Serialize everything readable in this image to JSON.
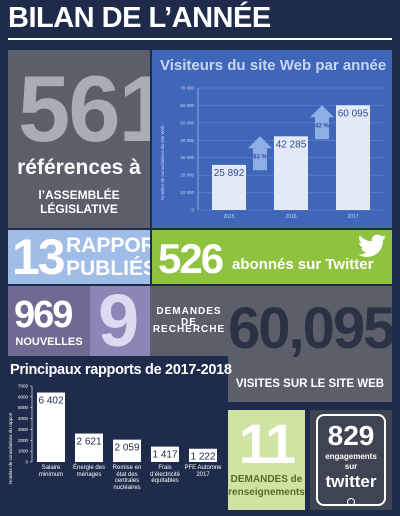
{
  "header": {
    "title": "BILAN DE L’ANNÉE"
  },
  "tiles": {
    "references": {
      "number": "561",
      "line1": "références à",
      "line2": "l’ASSEMBLÉE LÉGISLATIVE"
    },
    "reports": {
      "number": "13",
      "line1": "RAPPORTS",
      "line2": "PUBLIÉS"
    },
    "twitter": {
      "number": "526",
      "text": "abonnés sur Twitter"
    },
    "news": {
      "number": "969",
      "text": "NOUVELLES"
    },
    "research": {
      "number": "9",
      "line1": "DEMANDES DE",
      "line2": "RECHERCHE"
    },
    "visits": {
      "number": "60,095",
      "text": "VISITES SUR LE SITE WEB"
    },
    "inquiries": {
      "number": "11",
      "line1": "DEMANDES de",
      "line2": "renseignements"
    },
    "engagements": {
      "number": "829",
      "line1": "engagements",
      "line2": "sur",
      "line3": "twitter"
    }
  },
  "chart_data": [
    {
      "type": "bar",
      "title": "Visiteurs du site Web par année",
      "y_label": "Nombre de consultations du site Web",
      "categories": [
        "2015",
        "2016",
        "2017"
      ],
      "values": [
        25892,
        42285,
        60095
      ],
      "value_labels": [
        "25 892",
        "42 285",
        "60 095"
      ],
      "ylim": [
        0,
        70000
      ],
      "yticks": [
        0,
        {
          "value": 10000,
          "label": "10 000"
        },
        {
          "value": 20000,
          "label": "20 000"
        },
        {
          "value": 30000,
          "label": "30 000"
        },
        {
          "value": 40000,
          "label": "40 000"
        },
        {
          "value": 50000,
          "label": "50 000"
        },
        {
          "value": 60000,
          "label": "60 000"
        },
        {
          "value": 70000,
          "label": "70 000"
        }
      ],
      "annotations": [
        "63 %",
        "42 %"
      ],
      "color": "#e3e9f6",
      "grid": true
    },
    {
      "type": "bar",
      "title": "Principaux rapports de 2017-2018",
      "y_label": "Nombre de consultations du rapport",
      "categories": [
        "Salaire minimum",
        "Énergie des ménages",
        "Remise en état des centrales nucléaires",
        "Frais d’électricité équitables",
        "PFE Automne 2017"
      ],
      "values": [
        6402,
        2621,
        2059,
        1417,
        1222
      ],
      "value_labels": [
        "6 402",
        "2 621",
        "2 059",
        "1 417",
        "1 222"
      ],
      "ylim": [
        0,
        7000
      ],
      "yticks": [
        0,
        1000,
        2000,
        3000,
        4000,
        5000,
        6000,
        7000
      ],
      "color": "#ffffff",
      "grid": false
    }
  ]
}
